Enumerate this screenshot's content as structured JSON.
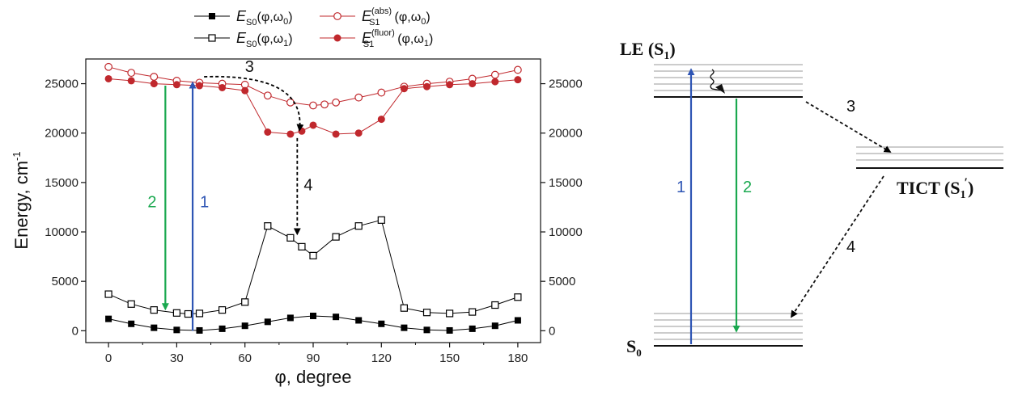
{
  "chart_data": {
    "type": "line",
    "xlabel": "φ, degree",
    "ylabel": "Energy, cm",
    "ylabel_sup": "-1",
    "xlim": [
      -10,
      190
    ],
    "ylim": [
      -1200,
      27500
    ],
    "x_ticks": [
      0,
      30,
      60,
      90,
      120,
      150,
      180
    ],
    "y_ticks": [
      0,
      5000,
      10000,
      15000,
      20000,
      25000
    ],
    "grid": false,
    "legend_position": "top",
    "series": [
      {
        "name": "E_S0(φ,ω0)",
        "legend": {
          "main": "E",
          "sub": "S0",
          "sup": "",
          "args": "(φ,ω",
          "argsub": "0",
          "close": ")"
        },
        "color": "#000000",
        "marker": "filled-square",
        "x": [
          0,
          10,
          20,
          30,
          40,
          50,
          60,
          70,
          80,
          90,
          100,
          110,
          120,
          130,
          140,
          150,
          160,
          170,
          180
        ],
        "y": [
          1200,
          700,
          300,
          80,
          30,
          200,
          500,
          900,
          1300,
          1500,
          1400,
          1050,
          700,
          300,
          80,
          30,
          200,
          500,
          1050
        ]
      },
      {
        "name": "E_S0(φ,ω1)",
        "legend": {
          "main": "E",
          "sub": "S0",
          "sup": "",
          "args": "(φ,ω",
          "argsub": "1",
          "close": ")"
        },
        "color": "#000000",
        "marker": "open-square",
        "x": [
          0,
          10,
          20,
          30,
          35,
          40,
          50,
          60,
          70,
          80,
          85,
          90,
          100,
          110,
          120,
          130,
          140,
          150,
          160,
          170,
          180
        ],
        "y": [
          3700,
          2700,
          2100,
          1800,
          1700,
          1750,
          2100,
          2900,
          10600,
          9400,
          8500,
          7600,
          9500,
          10600,
          11200,
          2300,
          1850,
          1750,
          1900,
          2600,
          3400
        ]
      },
      {
        "name": "E_S1(abs)(φ,ω0)",
        "legend": {
          "main": "E",
          "sub": "S1",
          "sup": "(abs)",
          "args": "(φ,ω",
          "argsub": "0",
          "close": ")"
        },
        "color": "#c0282d",
        "marker": "open-circle",
        "x": [
          0,
          10,
          20,
          30,
          40,
          50,
          60,
          70,
          80,
          90,
          95,
          100,
          110,
          120,
          130,
          140,
          150,
          160,
          170,
          180
        ],
        "y": [
          26700,
          26100,
          25700,
          25300,
          25100,
          25000,
          24900,
          23800,
          23100,
          22800,
          22900,
          23100,
          23600,
          24100,
          24700,
          25000,
          25200,
          25500,
          25900,
          26400
        ]
      },
      {
        "name": "E_S1(fluor)(φ,ω1)",
        "legend": {
          "main": "E",
          "sub": "S1",
          "sup": "(fluor)",
          "args": "(φ,ω",
          "argsub": "1",
          "close": ")"
        },
        "color": "#c0282d",
        "marker": "filled-circle",
        "x": [
          0,
          10,
          20,
          30,
          40,
          50,
          60,
          70,
          80,
          85,
          90,
          100,
          110,
          120,
          130,
          140,
          150,
          160,
          170,
          180
        ],
        "y": [
          25500,
          25300,
          25000,
          24900,
          24800,
          24600,
          24300,
          20100,
          19900,
          20200,
          20800,
          19900,
          20000,
          21400,
          24500,
          24700,
          24900,
          25000,
          25200,
          25400
        ]
      }
    ],
    "annotations": [
      {
        "label": "1",
        "color": "#2e55b4",
        "kind": "vertical-arrow",
        "x": 37,
        "y_from": 0,
        "y_to": 25100
      },
      {
        "label": "2",
        "color": "#1aa84f",
        "kind": "vertical-arrow",
        "x": 25,
        "y_from": 24800,
        "y_to": 2200
      },
      {
        "label": "3",
        "color": "#000000",
        "kind": "dashed-curved-arrow",
        "x_from": 42,
        "y_from": 25700,
        "x_to": 84,
        "y_to": 20300
      },
      {
        "label": "4",
        "color": "#000000",
        "kind": "dashed-vertical-arrow",
        "x": 83,
        "y_from": 19500,
        "y_to": 9800
      }
    ]
  },
  "diagram": {
    "levels": {
      "le": {
        "label": "LE (S",
        "sub": "1",
        "close": ")"
      },
      "s0": {
        "label": "S",
        "sub": "0"
      },
      "tict": {
        "label": "TICT (S",
        "sub": "1",
        "prime": "′",
        "close": ")"
      }
    },
    "transitions": [
      {
        "label": "1",
        "color": "#2e55b4"
      },
      {
        "label": "2",
        "color": "#1aa84f"
      },
      {
        "label": "3",
        "color": "#000000"
      },
      {
        "label": "4",
        "color": "#000000"
      }
    ]
  }
}
